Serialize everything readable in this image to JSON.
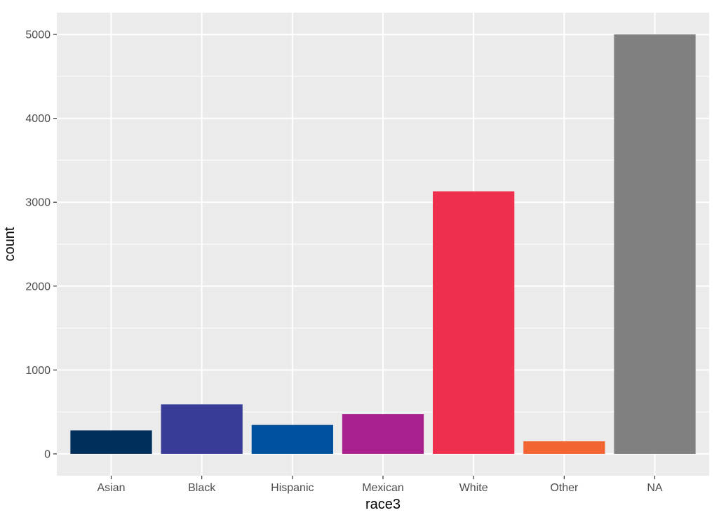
{
  "chart_data": {
    "type": "bar",
    "xlabel": "race3",
    "ylabel": "count",
    "categories": [
      "Asian",
      "Black",
      "Hispanic",
      "Mexican",
      "White",
      "Other",
      "NA"
    ],
    "values": [
      280,
      590,
      345,
      475,
      3130,
      150,
      5000
    ],
    "colors": [
      "#012f5c",
      "#393c96",
      "#00519d",
      "#a8208d",
      "#ee2f4d",
      "#f26532",
      "#808080"
    ],
    "ylim": [
      -260,
      5260
    ],
    "yticks": [
      0,
      1000,
      2000,
      3000,
      4000,
      5000
    ],
    "ytick_labels": [
      "0",
      "1000",
      "2000",
      "3000",
      "4000",
      "5000"
    ],
    "grid": true,
    "panel_background": "#ebebeb",
    "grid_color": "#ffffff"
  }
}
